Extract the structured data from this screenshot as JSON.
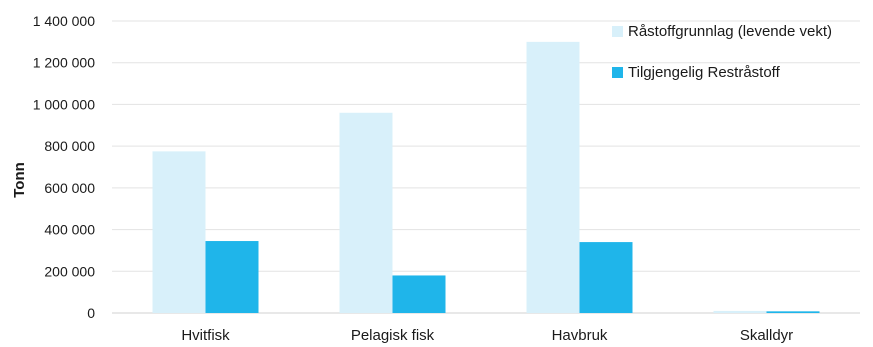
{
  "chart_data": {
    "type": "bar",
    "title": "",
    "xlabel": "",
    "ylabel": "Tonn",
    "categories": [
      "Hvitfisk",
      "Pelagisk fisk",
      "Havbruk",
      "Skalldyr"
    ],
    "series": [
      {
        "name": "Råstoffgrunnlag (levende vekt)",
        "values": [
          775000,
          960000,
          1300000,
          10000
        ],
        "color": "#d8f0fa"
      },
      {
        "name": "Tilgjengelig Restråstoff",
        "values": [
          345000,
          180000,
          340000,
          8000
        ],
        "color": "#1fb5ea"
      }
    ],
    "yticks": [
      "0",
      "200 000",
      "400 000",
      "600 000",
      "800 000",
      "1 000 000",
      "1 200 000",
      "1 400 000"
    ],
    "ylim": [
      0,
      1400000
    ],
    "grid": true,
    "legend_position": "top-right"
  }
}
